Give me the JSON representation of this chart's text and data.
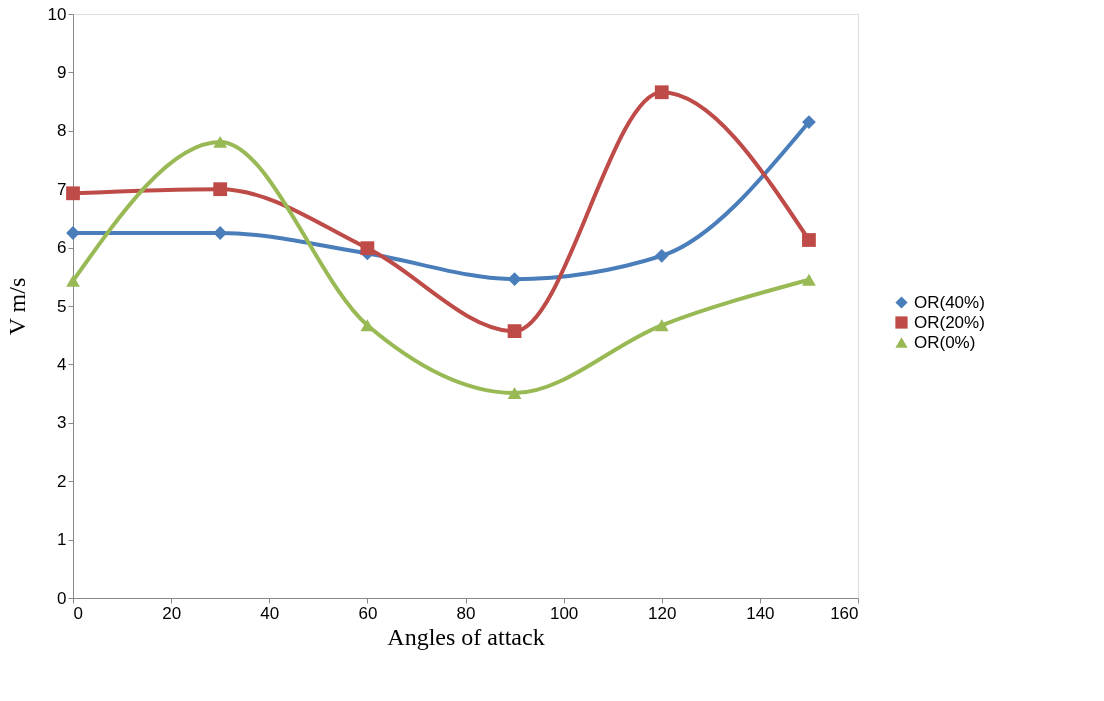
{
  "chart_data": {
    "type": "line",
    "xlabel": "Angles of attack",
    "ylabel": "V  m/s",
    "x": [
      0,
      30,
      60,
      90,
      120,
      150
    ],
    "series": [
      {
        "name": "OR(40%)",
        "color": "#4a7ebb",
        "marker": "diamond",
        "values": [
          6.25,
          6.25,
          5.9,
          5.46,
          5.86,
          8.15
        ]
      },
      {
        "name": "OR(20%)",
        "color": "#be4b48",
        "marker": "square",
        "values": [
          6.93,
          7.0,
          5.99,
          4.57,
          8.66,
          6.13
        ]
      },
      {
        "name": "OR(0%)",
        "color": "#98b954",
        "marker": "triangle",
        "values": [
          5.43,
          7.81,
          4.67,
          3.51,
          4.67,
          5.45
        ]
      }
    ],
    "xlim": [
      0,
      160
    ],
    "xticks": [
      0,
      20,
      40,
      60,
      80,
      100,
      120,
      140,
      160
    ],
    "ylim": [
      0,
      10
    ],
    "yticks": [
      0,
      1,
      2,
      3,
      4,
      5,
      6,
      7,
      8,
      9,
      10
    ],
    "grid": false,
    "legend": "right",
    "line_style": "solid"
  }
}
